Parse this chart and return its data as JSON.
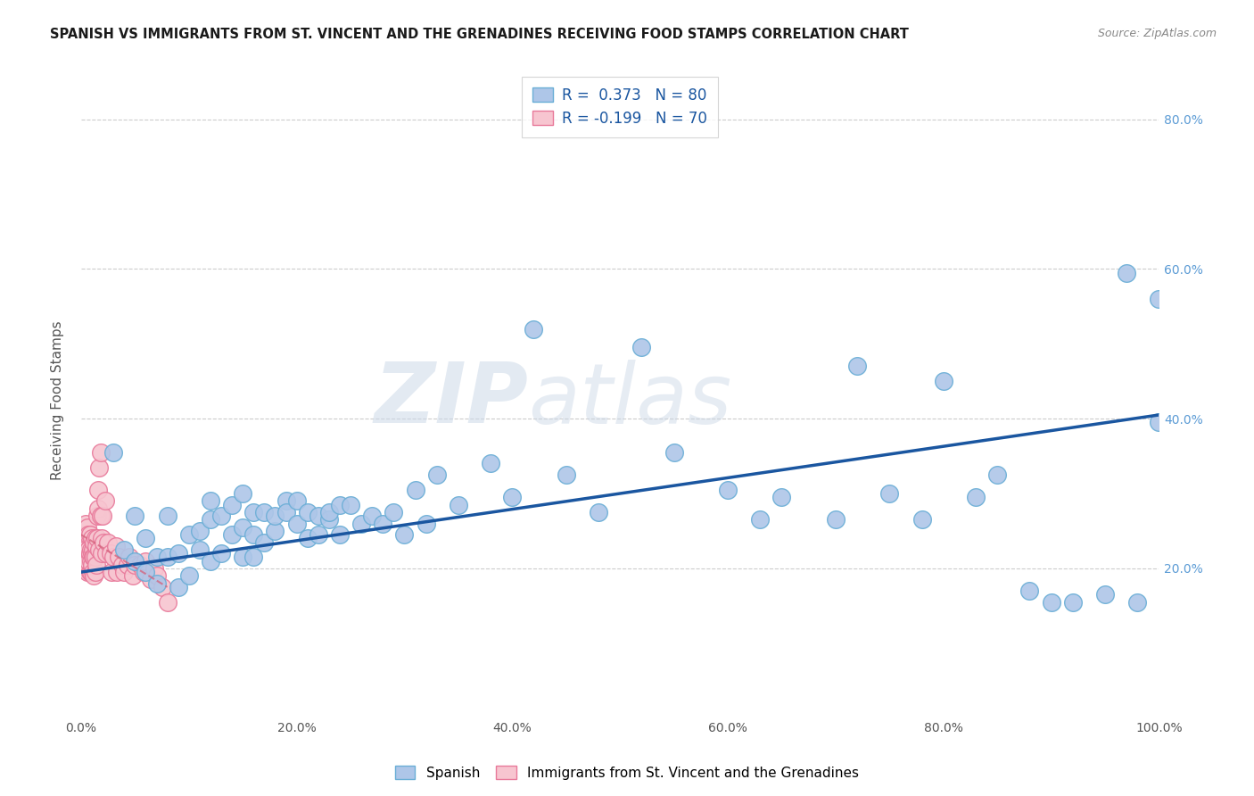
{
  "title": "SPANISH VS IMMIGRANTS FROM ST. VINCENT AND THE GRENADINES RECEIVING FOOD STAMPS CORRELATION CHART",
  "source": "Source: ZipAtlas.com",
  "ylabel": "Receiving Food Stamps",
  "xlim": [
    0.0,
    1.0
  ],
  "ylim": [
    0.0,
    0.85
  ],
  "xtick_labels": [
    "0.0%",
    "",
    "",
    "",
    "",
    "",
    "20.0%",
    "",
    "",
    "",
    "",
    "",
    "40.0%",
    "",
    "",
    "",
    "",
    "",
    "60.0%",
    "",
    "",
    "",
    "",
    "",
    "80.0%",
    "",
    "",
    "",
    "",
    "",
    "100.0%"
  ],
  "xtick_vals": [
    0.0,
    0.2,
    0.4,
    0.6,
    0.8,
    1.0
  ],
  "xtick_display": [
    "0.0%",
    "20.0%",
    "40.0%",
    "60.0%",
    "80.0%",
    "100.0%"
  ],
  "ytick_vals": [
    0.2,
    0.4,
    0.6,
    0.8
  ],
  "right_ytick_labels": [
    "20.0%",
    "40.0%",
    "60.0%",
    "80.0%"
  ],
  "blue_color": "#aec6e8",
  "blue_edge": "#6aaed6",
  "pink_color": "#f7c5d0",
  "pink_edge": "#e8799a",
  "trend_blue": "#1a56a0",
  "trend_pink": "#d4607a",
  "watermark_zip": "ZIP",
  "watermark_atlas": "atlas",
  "legend_R1_pre": "R = ",
  "legend_R1_val": " 0.373",
  "legend_R1_N": "  N = 80",
  "legend_R2_pre": "R = ",
  "legend_R2_val": "-0.199",
  "legend_R2_N": "  N = 70",
  "blue_scatter_x": [
    0.03,
    0.04,
    0.05,
    0.05,
    0.06,
    0.06,
    0.07,
    0.07,
    0.08,
    0.08,
    0.09,
    0.09,
    0.1,
    0.1,
    0.11,
    0.11,
    0.12,
    0.12,
    0.12,
    0.13,
    0.13,
    0.14,
    0.14,
    0.15,
    0.15,
    0.15,
    0.16,
    0.16,
    0.16,
    0.17,
    0.17,
    0.18,
    0.18,
    0.19,
    0.19,
    0.2,
    0.2,
    0.21,
    0.21,
    0.22,
    0.22,
    0.23,
    0.23,
    0.24,
    0.24,
    0.25,
    0.26,
    0.27,
    0.28,
    0.29,
    0.3,
    0.31,
    0.32,
    0.33,
    0.35,
    0.38,
    0.4,
    0.42,
    0.45,
    0.48,
    0.52,
    0.55,
    0.6,
    0.63,
    0.65,
    0.7,
    0.72,
    0.75,
    0.78,
    0.8,
    0.83,
    0.85,
    0.88,
    0.9,
    0.92,
    0.95,
    0.97,
    0.98,
    1.0,
    1.0
  ],
  "blue_scatter_y": [
    0.355,
    0.225,
    0.27,
    0.21,
    0.24,
    0.195,
    0.215,
    0.18,
    0.215,
    0.27,
    0.22,
    0.175,
    0.245,
    0.19,
    0.25,
    0.225,
    0.29,
    0.265,
    0.21,
    0.27,
    0.22,
    0.285,
    0.245,
    0.255,
    0.3,
    0.215,
    0.275,
    0.245,
    0.215,
    0.235,
    0.275,
    0.25,
    0.27,
    0.29,
    0.275,
    0.26,
    0.29,
    0.275,
    0.24,
    0.27,
    0.245,
    0.265,
    0.275,
    0.285,
    0.245,
    0.285,
    0.26,
    0.27,
    0.26,
    0.275,
    0.245,
    0.305,
    0.26,
    0.325,
    0.285,
    0.34,
    0.295,
    0.52,
    0.325,
    0.275,
    0.495,
    0.355,
    0.305,
    0.265,
    0.295,
    0.265,
    0.47,
    0.3,
    0.265,
    0.45,
    0.295,
    0.325,
    0.17,
    0.155,
    0.155,
    0.165,
    0.595,
    0.155,
    0.395,
    0.56
  ],
  "pink_scatter_x": [
    0.003,
    0.003,
    0.004,
    0.004,
    0.004,
    0.005,
    0.005,
    0.005,
    0.006,
    0.006,
    0.006,
    0.007,
    0.007,
    0.007,
    0.007,
    0.008,
    0.008,
    0.008,
    0.009,
    0.009,
    0.009,
    0.01,
    0.01,
    0.01,
    0.011,
    0.011,
    0.011,
    0.012,
    0.012,
    0.012,
    0.013,
    0.013,
    0.013,
    0.014,
    0.014,
    0.015,
    0.015,
    0.016,
    0.016,
    0.017,
    0.017,
    0.018,
    0.018,
    0.019,
    0.019,
    0.02,
    0.021,
    0.022,
    0.023,
    0.025,
    0.027,
    0.028,
    0.03,
    0.032,
    0.033,
    0.035,
    0.038,
    0.04,
    0.043,
    0.045,
    0.048,
    0.05,
    0.055,
    0.058,
    0.06,
    0.065,
    0.068,
    0.07,
    0.075,
    0.08
  ],
  "pink_scatter_y": [
    0.215,
    0.245,
    0.215,
    0.23,
    0.26,
    0.21,
    0.215,
    0.245,
    0.195,
    0.22,
    0.255,
    0.205,
    0.225,
    0.21,
    0.245,
    0.195,
    0.22,
    0.245,
    0.195,
    0.225,
    0.21,
    0.205,
    0.22,
    0.24,
    0.195,
    0.225,
    0.215,
    0.19,
    0.215,
    0.235,
    0.195,
    0.215,
    0.24,
    0.205,
    0.23,
    0.24,
    0.27,
    0.28,
    0.305,
    0.225,
    0.335,
    0.27,
    0.355,
    0.22,
    0.24,
    0.27,
    0.235,
    0.29,
    0.22,
    0.235,
    0.22,
    0.195,
    0.215,
    0.23,
    0.195,
    0.215,
    0.205,
    0.195,
    0.205,
    0.215,
    0.19,
    0.205,
    0.205,
    0.195,
    0.21,
    0.185,
    0.2,
    0.19,
    0.175,
    0.155
  ],
  "blue_trend_x": [
    0.0,
    1.0
  ],
  "blue_trend_y": [
    0.195,
    0.405
  ],
  "pink_trend_x": [
    0.0,
    0.08
  ],
  "pink_trend_y": [
    0.245,
    0.175
  ]
}
